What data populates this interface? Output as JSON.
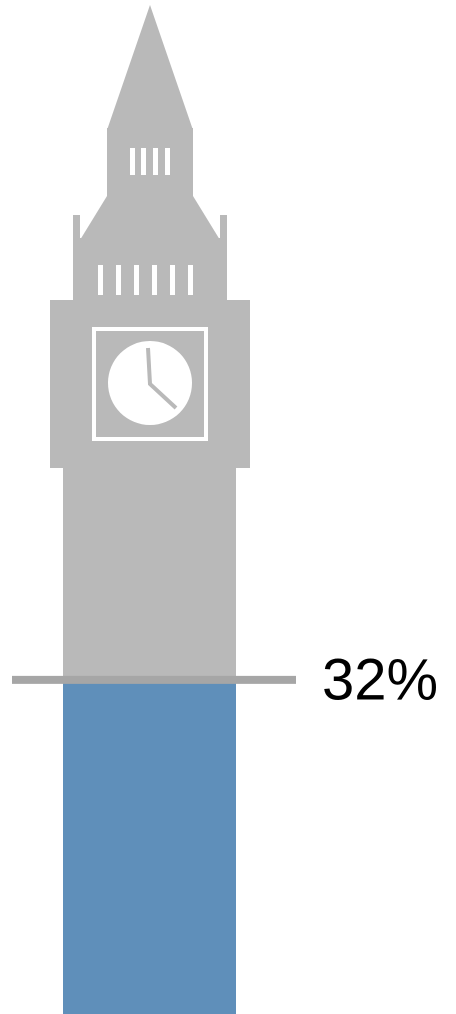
{
  "chart_data": {
    "type": "pictograph",
    "values": [
      32
    ],
    "value_labels": [
      "32%"
    ],
    "ylim": [
      0,
      100
    ],
    "color": "#5f8fba",
    "base_color": "#b9b9b9",
    "marker_color": "#a6a6a6"
  }
}
